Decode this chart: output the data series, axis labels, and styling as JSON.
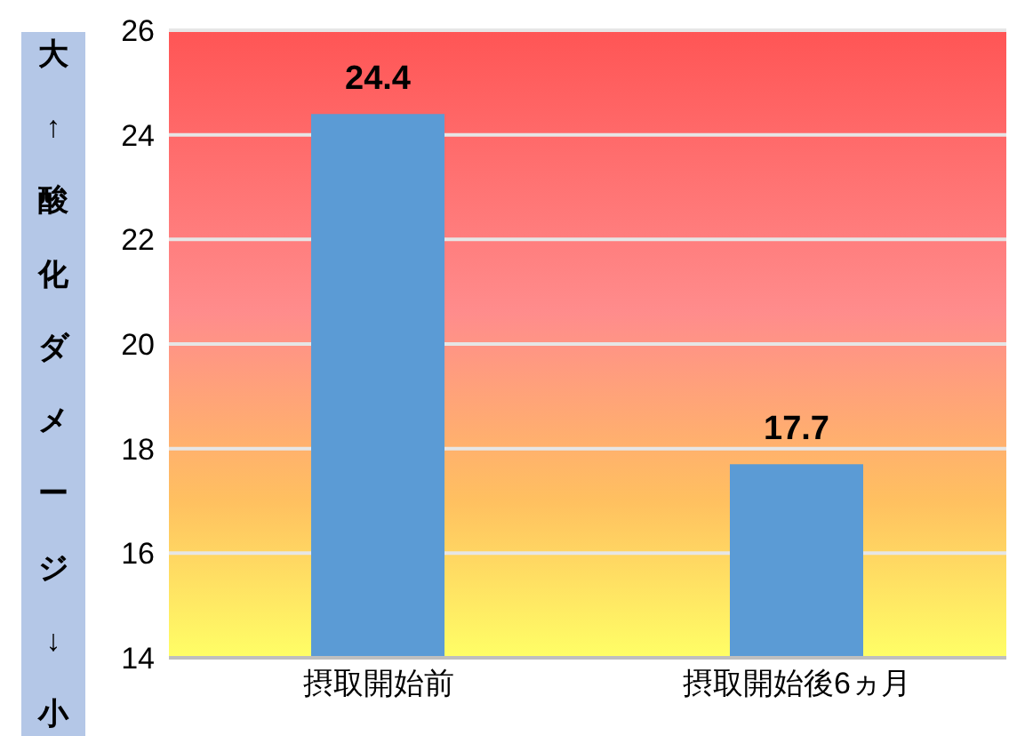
{
  "chart_data": {
    "type": "bar",
    "ylabel": "大↑酸化ダメージ↓小",
    "categories": [
      "摂取開始前",
      "摂取開始後6ヵ月"
    ],
    "values": [
      24.4,
      17.7
    ],
    "color": "#5b9bd5",
    "ylim": [
      14,
      26
    ],
    "yticks": [
      14,
      16,
      18,
      20,
      22,
      24,
      26
    ],
    "grid": "y",
    "data_labels": true
  }
}
